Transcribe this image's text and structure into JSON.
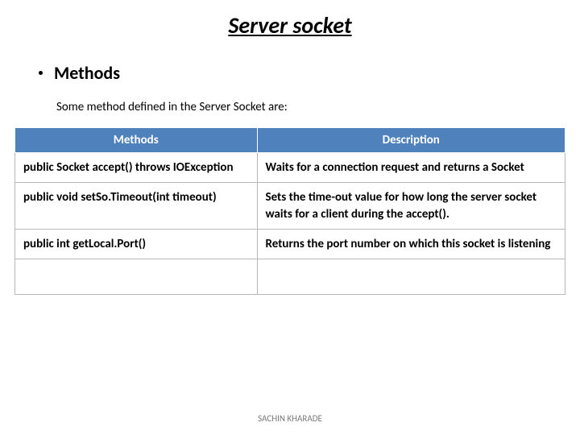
{
  "title": "Server  socket",
  "bullet": "Methods",
  "intro": "Some method defined in the Server Socket are:",
  "table": {
    "header_bg": "#4f81bd",
    "header_fg": "#ffffff",
    "border_color": "#b8b8b8",
    "font_size": 15,
    "columns": [
      {
        "label": "Methods",
        "width_pct": 44
      },
      {
        "label": "Description",
        "width_pct": 56
      }
    ],
    "rows": [
      {
        "method": "public Socket accept() throws IOException",
        "desc": "Waits for a connection request and returns a Socket"
      },
      {
        "method": "public void setSo.Timeout(int timeout)",
        "desc": "Sets the time-out value for how long the server socket waits for a client during the accept()."
      },
      {
        "method": "public int getLocal.Port()",
        "desc": "Returns the port number on which this socket is listening"
      }
    ]
  },
  "footer": "SACHIN KHARADE"
}
